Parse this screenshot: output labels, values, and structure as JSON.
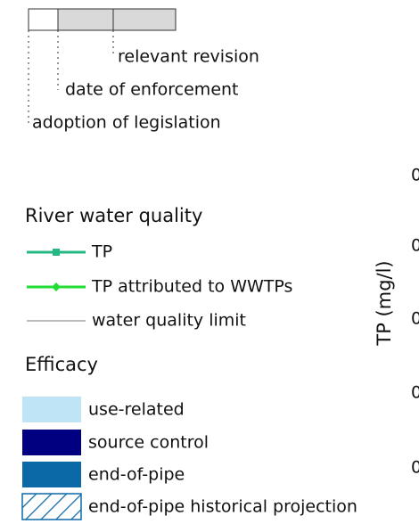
{
  "timeline_key": {
    "labels": [
      "relevant revision",
      "date of enforcement",
      "adoption of legislation"
    ]
  },
  "river_legend": {
    "title": "River water quality",
    "items": [
      {
        "label": "TP",
        "color": "#25b882"
      },
      {
        "label": "TP attributed to WWTPs",
        "color": "#22dd33"
      },
      {
        "label": "water quality limit",
        "color": "#bbbbbb"
      }
    ]
  },
  "efficacy_legend": {
    "title": "Efficacy",
    "items": [
      {
        "label": "use-related",
        "color": "#bfe4f6"
      },
      {
        "label": "source control",
        "color": "#000080"
      },
      {
        "label": "end-of-pipe",
        "color": "#0b69a8"
      },
      {
        "label": "end-of-pipe historical projection",
        "color": "#0b69a8"
      }
    ]
  },
  "axis": {
    "label": "TP (mg/l)",
    "tick_labels": [
      "0",
      "0",
      "0",
      "0",
      "0"
    ]
  }
}
